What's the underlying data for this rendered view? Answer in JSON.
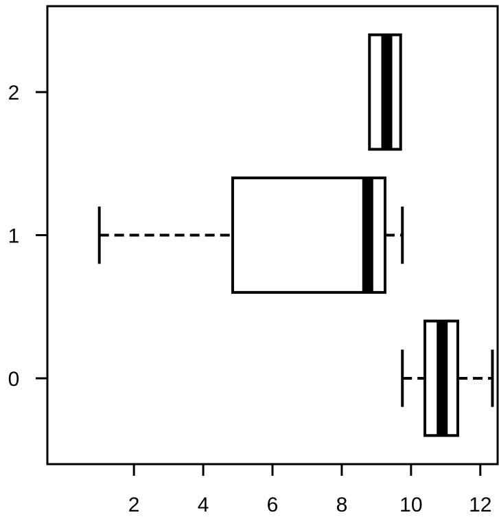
{
  "chart_data": {
    "type": "boxplot",
    "orientation": "horizontal",
    "title": "",
    "xlabel": "",
    "ylabel": "",
    "xlim": [
      -0.5,
      12.5
    ],
    "ylim": [
      -0.6,
      2.6
    ],
    "x_ticks": [
      2,
      4,
      6,
      8,
      10,
      12
    ],
    "x_tick_labels": [
      "2",
      "4",
      "6",
      "8",
      "10",
      "12"
    ],
    "y_ticks": [
      0,
      1,
      2
    ],
    "y_tick_labels": [
      "0",
      "1",
      "2"
    ],
    "grid": false,
    "legend": "none",
    "box_style": {
      "fill": "#ffffff",
      "stroke": "#000000",
      "median_color": "#000000",
      "whisker_dash": "dashed"
    },
    "boxes": [
      {
        "group": "0",
        "y": 0,
        "whisker_low": 9.75,
        "q1": 10.4,
        "median": 10.9,
        "q3": 11.35,
        "whisker_high": 12.35
      },
      {
        "group": "1",
        "y": 1,
        "whisker_low": 1.0,
        "q1": 4.85,
        "median": 8.75,
        "q3": 9.25,
        "whisker_high": 9.75
      },
      {
        "group": "2",
        "y": 2,
        "whisker_low": 8.8,
        "q1": 8.8,
        "median": 9.3,
        "q3": 9.7,
        "whisker_high": 9.7
      }
    ]
  }
}
